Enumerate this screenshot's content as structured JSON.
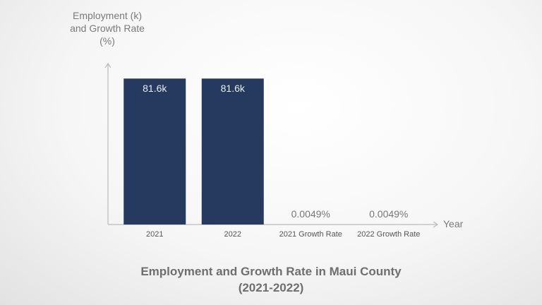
{
  "chart_data": {
    "type": "bar",
    "title": "Employment and Growth Rate in Maui County (2021-2022)",
    "x_label": "Year",
    "y_label": "Employment (k) and Growth Rate (%)",
    "categories": [
      "2021",
      "2022",
      "2021 Growth Rate",
      "2022 Growth Rate"
    ],
    "values": [
      81.6,
      81.6,
      0.0049,
      0.0049
    ],
    "value_labels": [
      "81.6k",
      "81.6k",
      "0.0049%",
      "0.0049%"
    ],
    "color": "#253a5e",
    "ylim": [
      0,
      90
    ]
  }
}
